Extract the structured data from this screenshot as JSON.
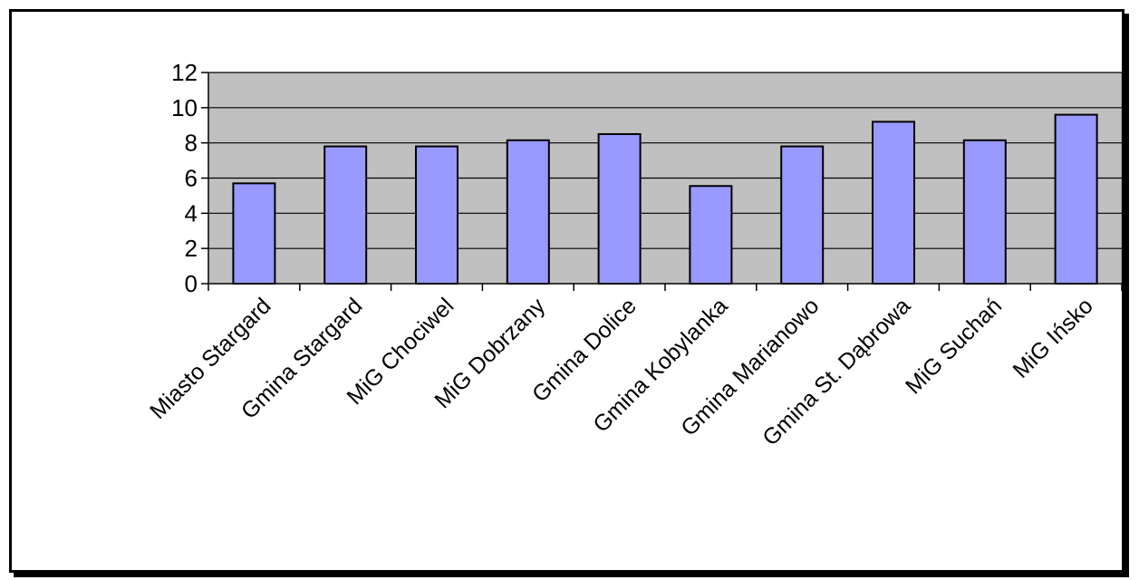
{
  "chart_data": {
    "type": "bar",
    "title": "",
    "xlabel": "",
    "ylabel": "",
    "categories": [
      "Miasto Stargard",
      "Gmina Stargard",
      "MiG Chociwel",
      "MiG Dobrzany",
      "Gmina Dolice",
      "Gmina Kobylanka",
      "Gmina Marianowo",
      "Gmina St. Dąbrowa",
      "MiG Suchań",
      "MiG Ińsko"
    ],
    "values": [
      5.7,
      7.8,
      7.8,
      8.15,
      8.5,
      5.55,
      7.8,
      9.2,
      8.15,
      9.6
    ],
    "ylim": [
      0,
      12
    ],
    "yticks": [
      0,
      2,
      4,
      6,
      8,
      10,
      12
    ],
    "grid": true,
    "legend": "none",
    "colors": {
      "plot_background": "#c0c0c0",
      "bar_fill": "#9999ff",
      "bar_stroke": "#000000",
      "gridline": "#000000"
    }
  }
}
